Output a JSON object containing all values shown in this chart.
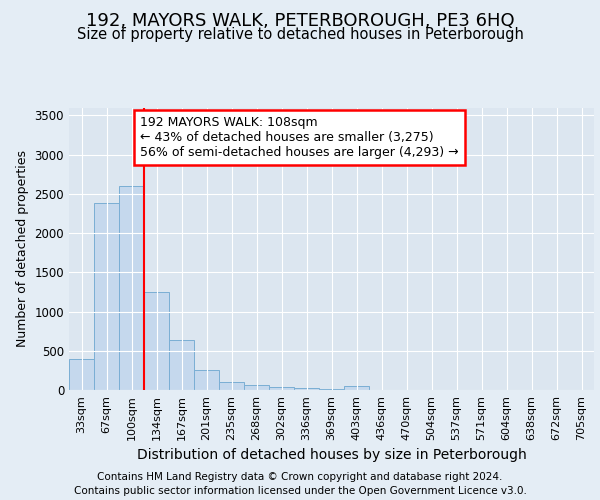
{
  "title": "192, MAYORS WALK, PETERBOROUGH, PE3 6HQ",
  "subtitle": "Size of property relative to detached houses in Peterborough",
  "xlabel": "Distribution of detached houses by size in Peterborough",
  "ylabel": "Number of detached properties",
  "footnote1": "Contains HM Land Registry data © Crown copyright and database right 2024.",
  "footnote2": "Contains public sector information licensed under the Open Government Licence v3.0.",
  "categories": [
    "33sqm",
    "67sqm",
    "100sqm",
    "134sqm",
    "167sqm",
    "201sqm",
    "235sqm",
    "268sqm",
    "302sqm",
    "336sqm",
    "369sqm",
    "403sqm",
    "436sqm",
    "470sqm",
    "504sqm",
    "537sqm",
    "571sqm",
    "604sqm",
    "638sqm",
    "672sqm",
    "705sqm"
  ],
  "values": [
    400,
    2380,
    2600,
    1250,
    640,
    255,
    105,
    60,
    40,
    20,
    15,
    50,
    0,
    0,
    0,
    0,
    0,
    0,
    0,
    0,
    0
  ],
  "bar_color": "#c5d8ed",
  "bar_edge_color": "#7aaed4",
  "red_line_index": 2,
  "annotation_line1": "192 MAYORS WALK: 108sqm",
  "annotation_line2": "← 43% of detached houses are smaller (3,275)",
  "annotation_line3": "56% of semi-detached houses are larger (4,293) →",
  "ylim": [
    0,
    3600
  ],
  "yticks": [
    0,
    500,
    1000,
    1500,
    2000,
    2500,
    3000,
    3500
  ],
  "bg_color": "#e4edf5",
  "plot_bg": "#dce6f0",
  "grid_color": "#ffffff",
  "title_fontsize": 13,
  "subtitle_fontsize": 10.5,
  "tick_fontsize": 8,
  "ylabel_fontsize": 9,
  "xlabel_fontsize": 10,
  "footnote_fontsize": 7.5
}
